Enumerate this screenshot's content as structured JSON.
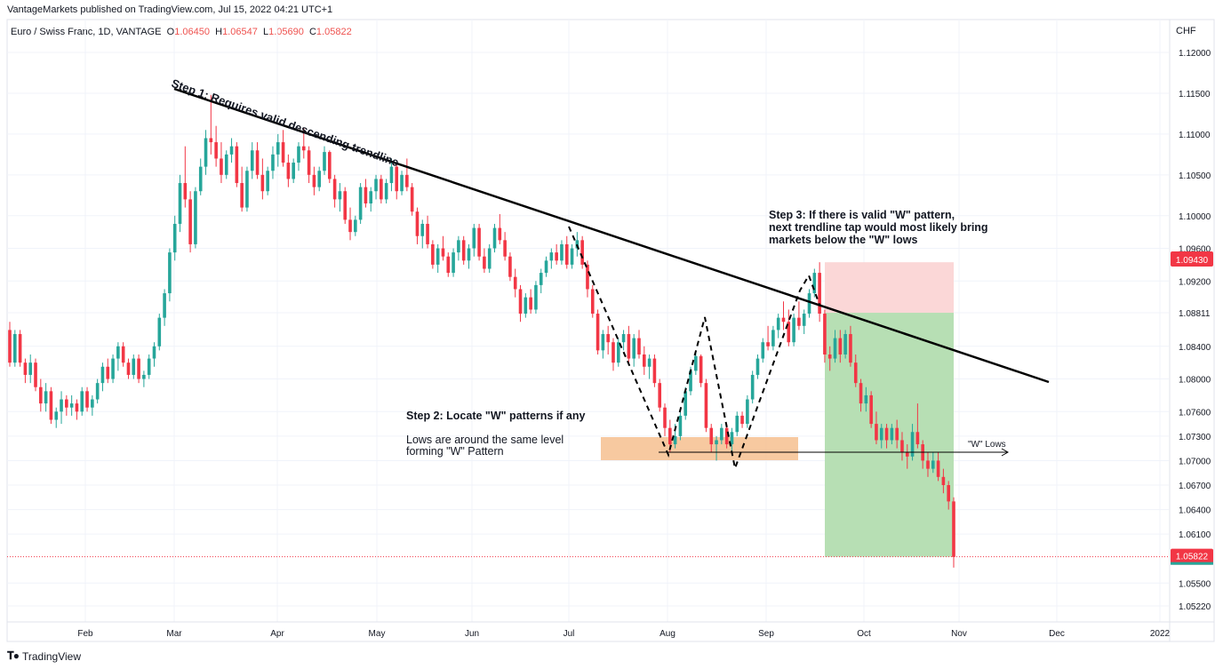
{
  "header": {
    "publisher_line": "VantageMarkets published on TradingView.com, Jul 15, 2022 04:21 UTC+1"
  },
  "symbol": {
    "name": "Euro / Swiss Franc, 1D, VANTAGE",
    "open_label": "O",
    "open": "1.06450",
    "high_label": "H",
    "high": "1.06547",
    "low_label": "L",
    "low": "1.05690",
    "close_label": "C",
    "close": "1.05822"
  },
  "currency": "CHF",
  "annotations": {
    "step1": "Step 1: Requires valid descending trendline",
    "step2_title": "Step 2: Locate \"W\" patterns if any",
    "step2_body_1": "Lows are around the same level",
    "step2_body_2": "forming \"W\" Pattern",
    "step3_line1": "Step 3: If there is valid \"W\" pattern,",
    "step3_line2": "next trendline tap would most likely bring",
    "step3_line3": "markets below the \"W\" lows",
    "w_lows": "\"W\" Lows"
  },
  "badges": {
    "stop": "1.09430",
    "current": "1.05822"
  },
  "footer": {
    "brand": "TradingView"
  },
  "colors": {
    "up": "#26a69a",
    "down": "#f23645",
    "target_zone": "#b7dfb4",
    "stop_zone": "#fbd7d7",
    "w_zone": "#f6c08f"
  },
  "chart_data": {
    "type": "candlestick",
    "symbol": "EURCHF",
    "timeframe": "1D",
    "y_axis_ticks": [
      1.12,
      1.115,
      1.11,
      1.105,
      1.1,
      1.096,
      1.092,
      1.08811,
      1.084,
      1.08,
      1.076,
      1.073,
      1.07,
      1.067,
      1.064,
      1.061,
      1.05822,
      1.055,
      1.0522
    ],
    "x_axis_labels": [
      "Feb",
      "Mar",
      "Apr",
      "May",
      "Jun",
      "Jul",
      "Aug",
      "Sep",
      "Oct",
      "Nov",
      "Dec",
      "2022"
    ],
    "ylim": [
      1.051,
      1.1215
    ],
    "trendline": {
      "from": {
        "date": "2021-03-01",
        "price": 1.1155
      },
      "to": {
        "date": "2021-12-01",
        "price": 1.0792
      }
    },
    "w_lows_level": 1.0708,
    "w_zone": {
      "from": "2021-07-12",
      "to": "2021-09-12",
      "low": 1.0695,
      "high": 1.0725
    },
    "position": {
      "from": "2021-09-20",
      "to": "2021-10-29",
      "entry": 1.08811,
      "stop": 1.0943,
      "target": 1.05822
    },
    "w_pattern_path": [
      [
        "2021-07-01",
        1.0978
      ],
      [
        "2021-07-30",
        1.0706
      ],
      [
        "2021-08-14",
        1.0875
      ],
      [
        "2021-08-23",
        1.0683
      ],
      [
        "2021-09-13",
        1.0925
      ],
      [
        "2021-09-18",
        1.0878
      ]
    ],
    "candles_summary": {
      "start": "2021-01-04",
      "end": "2021-10-29",
      "closes_monthly": {
        "Jan": 1.0775,
        "Feb": 1.0935,
        "Mar": 1.1005,
        "Apr": 1.0975,
        "May": 1.094,
        "Jun": 1.097,
        "Jul": 1.0815,
        "Aug": 1.072,
        "Sep": 1.088,
        "Oct": 1.0582
      }
    },
    "candles": [
      [
        0,
        1.086,
        1.087,
        1.0815,
        1.082
      ],
      [
        1,
        1.082,
        1.086,
        1.0815,
        1.0855
      ],
      [
        2,
        1.0855,
        1.086,
        1.0815,
        1.082
      ],
      [
        3,
        1.082,
        1.0825,
        1.0795,
        1.0805
      ],
      [
        4,
        1.0805,
        1.083,
        1.0795,
        1.082
      ],
      [
        5,
        1.082,
        1.0825,
        1.0785,
        1.079
      ],
      [
        6,
        1.079,
        1.08,
        1.076,
        1.077
      ],
      [
        7,
        1.077,
        1.0795,
        1.076,
        1.0785
      ],
      [
        8,
        1.0785,
        1.079,
        1.0745,
        1.075
      ],
      [
        9,
        1.075,
        1.0765,
        1.074,
        1.076
      ],
      [
        10,
        1.076,
        1.0785,
        1.0745,
        1.0775
      ],
      [
        11,
        1.0775,
        1.078,
        1.0755,
        1.0765
      ],
      [
        12,
        1.0765,
        1.078,
        1.0755,
        1.077
      ],
      [
        13,
        1.077,
        1.0775,
        1.075,
        1.076
      ],
      [
        14,
        1.076,
        1.079,
        1.0755,
        1.0785
      ],
      [
        15,
        1.0785,
        1.079,
        1.076,
        1.0765
      ],
      [
        16,
        1.0765,
        1.078,
        1.0755,
        1.0775
      ],
      [
        17,
        1.0775,
        1.08,
        1.077,
        1.0795
      ],
      [
        18,
        1.0795,
        1.082,
        1.0785,
        1.0815
      ],
      [
        19,
        1.0815,
        1.0825,
        1.0795,
        1.08
      ],
      [
        20,
        1.08,
        1.083,
        1.0795,
        1.0825
      ],
      [
        21,
        1.0825,
        1.0845,
        1.081,
        1.084
      ],
      [
        22,
        1.084,
        1.0845,
        1.0815,
        1.082
      ],
      [
        23,
        1.082,
        1.0825,
        1.08,
        1.0805
      ],
      [
        24,
        1.0805,
        1.083,
        1.08,
        1.0825
      ],
      [
        25,
        1.0825,
        1.083,
        1.0795,
        1.08
      ],
      [
        26,
        1.08,
        1.081,
        1.079,
        1.0805
      ],
      [
        27,
        1.0805,
        1.083,
        1.08,
        1.0825
      ],
      [
        28,
        1.0825,
        1.0845,
        1.0815,
        1.084
      ],
      [
        29,
        1.084,
        1.088,
        1.0835,
        1.0875
      ],
      [
        30,
        1.0875,
        1.091,
        1.0865,
        1.0905
      ],
      [
        31,
        1.0905,
        1.096,
        1.0895,
        1.0955
      ],
      [
        32,
        1.0955,
        1.1,
        1.0945,
        1.099
      ],
      [
        33,
        1.099,
        1.105,
        1.098,
        1.104
      ],
      [
        34,
        1.104,
        1.1085,
        1.101,
        1.102
      ],
      [
        35,
        1.102,
        1.103,
        1.0955,
        1.0965
      ],
      [
        36,
        1.0965,
        1.1035,
        1.096,
        1.103
      ],
      [
        37,
        1.103,
        1.107,
        1.1025,
        1.106
      ],
      [
        38,
        1.106,
        1.1105,
        1.105,
        1.1095
      ],
      [
        39,
        1.1095,
        1.1148,
        1.1075,
        1.109
      ],
      [
        40,
        1.109,
        1.111,
        1.106,
        1.107
      ],
      [
        41,
        1.107,
        1.109,
        1.104,
        1.105
      ],
      [
        42,
        1.105,
        1.108,
        1.1045,
        1.1075
      ],
      [
        43,
        1.1075,
        1.1095,
        1.1065,
        1.1085
      ],
      [
        44,
        1.1085,
        1.109,
        1.1035,
        1.104
      ],
      [
        45,
        1.104,
        1.106,
        1.1005,
        1.101
      ],
      [
        46,
        1.101,
        1.106,
        1.1005,
        1.1055
      ],
      [
        47,
        1.1055,
        1.109,
        1.1045,
        1.108
      ],
      [
        48,
        1.108,
        1.109,
        1.1045,
        1.105
      ],
      [
        49,
        1.105,
        1.107,
        1.102,
        1.103
      ],
      [
        50,
        1.103,
        1.106,
        1.1025,
        1.1055
      ],
      [
        51,
        1.1055,
        1.1085,
        1.1045,
        1.1075
      ],
      [
        52,
        1.1075,
        1.11,
        1.106,
        1.109
      ],
      [
        53,
        1.109,
        1.1105,
        1.106,
        1.1065
      ],
      [
        54,
        1.1065,
        1.1075,
        1.1035,
        1.1045
      ],
      [
        55,
        1.1045,
        1.107,
        1.104,
        1.1065
      ],
      [
        56,
        1.1065,
        1.109,
        1.1055,
        1.1085
      ],
      [
        57,
        1.1085,
        1.1108,
        1.107,
        1.108
      ],
      [
        58,
        1.108,
        1.1085,
        1.104,
        1.105
      ],
      [
        59,
        1.105,
        1.106,
        1.1025,
        1.1035
      ],
      [
        60,
        1.1035,
        1.106,
        1.103,
        1.1055
      ],
      [
        61,
        1.1055,
        1.1085,
        1.105,
        1.1078
      ],
      [
        62,
        1.1078,
        1.108,
        1.104,
        1.1045
      ],
      [
        63,
        1.1045,
        1.105,
        1.101,
        1.102
      ],
      [
        64,
        1.102,
        1.104,
        1.1005,
        1.103
      ],
      [
        65,
        1.103,
        1.1035,
        1.099,
        1.0995
      ],
      [
        66,
        1.0995,
        1.101,
        1.097,
        1.098
      ],
      [
        67,
        1.098,
        1.1,
        1.0975,
        1.0995
      ],
      [
        68,
        1.0995,
        1.104,
        1.099,
        1.1035
      ],
      [
        69,
        1.1035,
        1.1045,
        1.101,
        1.1015
      ],
      [
        70,
        1.1015,
        1.1035,
        1.1005,
        1.103
      ],
      [
        71,
        1.103,
        1.105,
        1.102,
        1.1045
      ],
      [
        72,
        1.1045,
        1.105,
        1.1015,
        1.102
      ],
      [
        73,
        1.102,
        1.1045,
        1.1015,
        1.104
      ],
      [
        74,
        1.104,
        1.107,
        1.103,
        1.106
      ],
      [
        75,
        1.106,
        1.1065,
        1.102,
        1.103
      ],
      [
        76,
        1.103,
        1.1055,
        1.1025,
        1.105
      ],
      [
        77,
        1.105,
        1.107,
        1.103,
        1.1035
      ],
      [
        78,
        1.1035,
        1.104,
        1.1,
        1.1005
      ],
      [
        79,
        1.1005,
        1.101,
        1.0965,
        1.0975
      ],
      [
        80,
        1.0975,
        1.0995,
        1.096,
        1.099
      ],
      [
        81,
        1.099,
        1.1,
        1.096,
        1.0965
      ],
      [
        82,
        1.0965,
        1.097,
        1.0935,
        1.094
      ],
      [
        83,
        1.094,
        1.0965,
        1.093,
        1.096
      ],
      [
        84,
        1.096,
        1.0975,
        1.0945,
        1.095
      ],
      [
        85,
        1.095,
        1.0955,
        1.0925,
        1.093
      ],
      [
        86,
        1.093,
        1.096,
        1.0925,
        1.0955
      ],
      [
        87,
        1.0955,
        1.0975,
        1.0945,
        1.097
      ],
      [
        88,
        1.097,
        1.0975,
        1.094,
        1.0945
      ],
      [
        89,
        1.0945,
        1.0965,
        1.0935,
        1.096
      ],
      [
        90,
        1.096,
        1.099,
        1.095,
        1.0985
      ],
      [
        91,
        1.0985,
        1.099,
        1.0945,
        1.095
      ],
      [
        92,
        1.095,
        1.096,
        1.093,
        1.0935
      ],
      [
        93,
        1.0935,
        1.0965,
        1.093,
        1.096
      ],
      [
        94,
        1.096,
        1.099,
        1.0955,
        1.0985
      ],
      [
        95,
        1.0985,
        1.1002,
        1.0965,
        1.097
      ],
      [
        96,
        1.097,
        1.098,
        1.0945,
        1.095
      ],
      [
        97,
        1.095,
        1.0955,
        1.092,
        1.0925
      ],
      [
        98,
        1.0925,
        1.0935,
        1.09,
        1.091
      ],
      [
        99,
        1.091,
        1.0915,
        1.087,
        1.088
      ],
      [
        100,
        1.088,
        1.0905,
        1.0875,
        1.09
      ],
      [
        101,
        1.09,
        1.091,
        1.088,
        1.0885
      ],
      [
        102,
        1.0885,
        1.092,
        1.088,
        1.0915
      ],
      [
        103,
        1.0915,
        1.0935,
        1.0905,
        1.093
      ],
      [
        104,
        1.093,
        1.095,
        1.0925,
        1.0945
      ],
      [
        105,
        1.0945,
        1.096,
        1.0935,
        1.0955
      ],
      [
        106,
        1.0955,
        1.0965,
        1.094,
        1.0945
      ],
      [
        107,
        1.0945,
        1.097,
        1.094,
        1.0965
      ],
      [
        108,
        1.0965,
        1.0975,
        1.0935,
        1.094
      ],
      [
        109,
        1.094,
        1.0965,
        1.0935,
        1.096
      ],
      [
        110,
        1.096,
        1.098,
        1.095,
        1.097
      ],
      [
        111,
        1.097,
        1.0975,
        1.0935,
        1.094
      ],
      [
        112,
        1.094,
        1.0945,
        1.09,
        1.091
      ],
      [
        113,
        1.091,
        1.0915,
        1.0875,
        1.088
      ],
      [
        114,
        1.088,
        1.0885,
        1.083,
        1.0835
      ],
      [
        115,
        1.0835,
        1.086,
        1.0825,
        1.0855
      ],
      [
        116,
        1.0855,
        1.0865,
        1.083,
        1.0845
      ],
      [
        117,
        1.0845,
        1.085,
        1.081,
        1.082
      ],
      [
        118,
        1.082,
        1.085,
        1.0815,
        1.0845
      ],
      [
        119,
        1.0845,
        1.086,
        1.0835,
        1.0855
      ],
      [
        120,
        1.0855,
        1.0865,
        1.082,
        1.0825
      ],
      [
        121,
        1.0825,
        1.0855,
        1.0815,
        1.085
      ],
      [
        122,
        1.085,
        1.086,
        1.0825,
        1.083
      ],
      [
        123,
        1.083,
        1.084,
        1.0805,
        1.0815
      ],
      [
        124,
        1.0815,
        1.083,
        1.08,
        1.0825
      ],
      [
        125,
        1.0825,
        1.083,
        1.079,
        1.0795
      ],
      [
        126,
        1.0795,
        1.08,
        1.076,
        1.0765
      ],
      [
        127,
        1.0765,
        1.077,
        1.073,
        1.074
      ],
      [
        128,
        1.074,
        1.075,
        1.071,
        1.072
      ],
      [
        129,
        1.072,
        1.0745,
        1.0715,
        1.073
      ],
      [
        130,
        1.073,
        1.076,
        1.0725,
        1.0755
      ],
      [
        131,
        1.0755,
        1.079,
        1.075,
        1.0785
      ],
      [
        132,
        1.0785,
        1.0815,
        1.078,
        1.081
      ],
      [
        133,
        1.081,
        1.0835,
        1.0805,
        1.0828
      ],
      [
        134,
        1.0828,
        1.083,
        1.079,
        1.0795
      ],
      [
        135,
        1.0795,
        1.08,
        1.0735,
        1.074
      ],
      [
        136,
        1.074,
        1.0745,
        1.071,
        1.072
      ],
      [
        137,
        1.072,
        1.073,
        1.07,
        1.0725
      ],
      [
        138,
        1.0725,
        1.0745,
        1.072,
        1.074
      ],
      [
        139,
        1.074,
        1.0745,
        1.0715,
        1.072
      ],
      [
        140,
        1.072,
        1.074,
        1.071,
        1.0735
      ],
      [
        141,
        1.0735,
        1.076,
        1.073,
        1.0755
      ],
      [
        142,
        1.0755,
        1.076,
        1.074,
        1.0745
      ],
      [
        143,
        1.0745,
        1.078,
        1.074,
        1.0775
      ],
      [
        144,
        1.0775,
        1.081,
        1.077,
        1.0805
      ],
      [
        145,
        1.0805,
        1.083,
        1.08,
        1.0825
      ],
      [
        146,
        1.0825,
        1.085,
        1.082,
        1.0845
      ],
      [
        147,
        1.0845,
        1.0865,
        1.0835,
        1.084
      ],
      [
        148,
        1.084,
        1.0865,
        1.0835,
        1.086
      ],
      [
        149,
        1.086,
        1.088,
        1.085,
        1.0875
      ],
      [
        150,
        1.0875,
        1.0895,
        1.086,
        1.087
      ],
      [
        151,
        1.087,
        1.0885,
        1.084,
        1.0845
      ],
      [
        152,
        1.0845,
        1.088,
        1.084,
        1.0875
      ],
      [
        153,
        1.0875,
        1.0895,
        1.086,
        1.0865
      ],
      [
        154,
        1.0865,
        1.0885,
        1.0855,
        1.088
      ],
      [
        155,
        1.088,
        1.091,
        1.0875,
        1.0905
      ],
      [
        156,
        1.0905,
        1.0935,
        1.09,
        1.093
      ],
      [
        157,
        1.093,
        1.0943,
        1.087,
        1.088
      ],
      [
        158,
        1.088,
        1.0885,
        1.082,
        1.083
      ],
      [
        159,
        1.083,
        1.084,
        1.081,
        1.0825
      ],
      [
        160,
        1.0825,
        1.086,
        1.082,
        1.085
      ],
      [
        161,
        1.085,
        1.086,
        1.082,
        1.083
      ],
      [
        162,
        1.083,
        1.086,
        1.0825,
        1.0855
      ],
      [
        163,
        1.0855,
        1.0865,
        1.0815,
        1.082
      ],
      [
        164,
        1.082,
        1.083,
        1.079,
        1.0795
      ],
      [
        165,
        1.0795,
        1.08,
        1.076,
        1.077
      ],
      [
        166,
        1.077,
        1.079,
        1.076,
        1.078
      ],
      [
        167,
        1.078,
        1.0785,
        1.074,
        1.0745
      ],
      [
        168,
        1.0745,
        1.076,
        1.072,
        1.0725
      ],
      [
        169,
        1.0725,
        1.0745,
        1.0715,
        1.074
      ],
      [
        170,
        1.074,
        1.0745,
        1.0715,
        1.0725
      ],
      [
        171,
        1.0725,
        1.0745,
        1.072,
        1.074
      ],
      [
        172,
        1.074,
        1.075,
        1.0715,
        1.0725
      ],
      [
        173,
        1.0725,
        1.0735,
        1.07,
        1.071
      ],
      [
        174,
        1.071,
        1.072,
        1.069,
        1.0705
      ],
      [
        175,
        1.0705,
        1.0745,
        1.07,
        1.0735
      ],
      [
        176,
        1.0735,
        1.077,
        1.0715,
        1.072
      ],
      [
        177,
        1.072,
        1.0725,
        1.069,
        1.07
      ],
      [
        178,
        1.07,
        1.071,
        1.068,
        1.069
      ],
      [
        179,
        1.069,
        1.071,
        1.0685,
        1.07
      ],
      [
        180,
        1.07,
        1.071,
        1.0675,
        1.068
      ],
      [
        181,
        1.068,
        1.069,
        1.066,
        1.067
      ],
      [
        182,
        1.067,
        1.0675,
        1.064,
        1.065
      ],
      [
        183,
        1.065,
        1.0655,
        1.0569,
        1.0582
      ]
    ]
  }
}
